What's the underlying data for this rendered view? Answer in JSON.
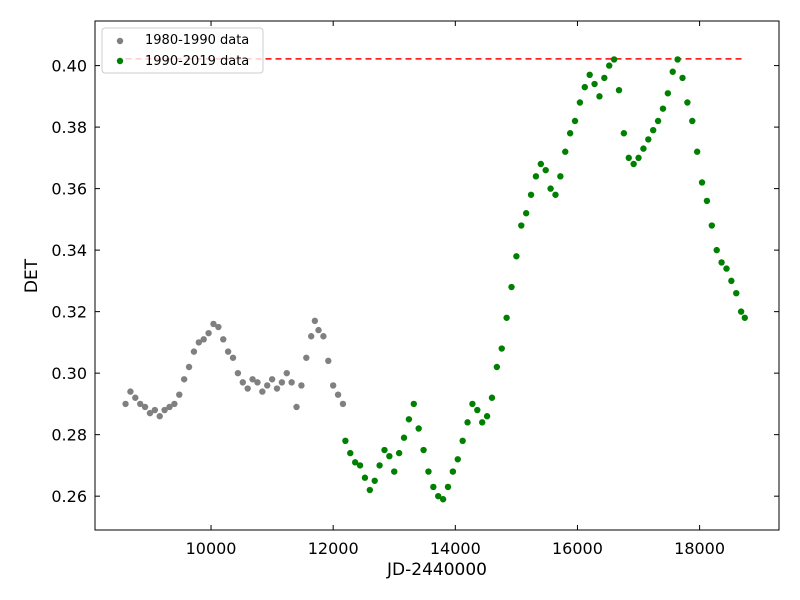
{
  "chart_data": {
    "type": "scatter",
    "xlabel": "JD-2440000",
    "ylabel": "DET",
    "xlim": [
      8100,
      19300
    ],
    "ylim": [
      0.249,
      0.4145
    ],
    "xticks": [
      10000,
      12000,
      14000,
      16000,
      18000
    ],
    "xtick_labels": [
      "10000",
      "12000",
      "14000",
      "16000",
      "18000"
    ],
    "yticks": [
      0.26,
      0.28,
      0.3,
      0.32,
      0.34,
      0.36,
      0.38,
      0.4
    ],
    "ytick_labels": [
      "0.26",
      "0.28",
      "0.30",
      "0.32",
      "0.34",
      "0.36",
      "0.38",
      "0.40"
    ],
    "legend_position": "top-left",
    "reference_line": {
      "y": 0.4022,
      "x_start": 8600,
      "x_end": 18750,
      "color": "#ff0000",
      "style": "dashed"
    },
    "series": [
      {
        "name": "1980-1990 data",
        "color": "#808080",
        "x": [
          8600,
          8680,
          8760,
          8840,
          8920,
          9000,
          9080,
          9160,
          9240,
          9320,
          9400,
          9480,
          9560,
          9640,
          9720,
          9800,
          9880,
          9960,
          10040,
          10120,
          10200,
          10280,
          10360,
          10440,
          10520,
          10600,
          10680,
          10760,
          10840,
          10920,
          11000,
          11080,
          11160,
          11240,
          11320,
          11400,
          11480,
          11560,
          11640,
          11700,
          11760,
          11840,
          11920,
          12000,
          12080,
          12160
        ],
        "y": [
          0.29,
          0.294,
          0.292,
          0.29,
          0.289,
          0.287,
          0.288,
          0.286,
          0.288,
          0.289,
          0.29,
          0.293,
          0.298,
          0.302,
          0.307,
          0.31,
          0.311,
          0.313,
          0.316,
          0.315,
          0.311,
          0.307,
          0.305,
          0.3,
          0.297,
          0.295,
          0.298,
          0.297,
          0.294,
          0.296,
          0.298,
          0.295,
          0.297,
          0.3,
          0.297,
          0.289,
          0.296,
          0.305,
          0.312,
          0.317,
          0.314,
          0.312,
          0.304,
          0.296,
          0.293,
          0.29
        ]
      },
      {
        "name": "1990-2019 data",
        "color": "#008000",
        "x": [
          12200,
          12280,
          12360,
          12440,
          12520,
          12600,
          12680,
          12760,
          12840,
          12920,
          13000,
          13080,
          13160,
          13240,
          13320,
          13400,
          13480,
          13560,
          13640,
          13720,
          13800,
          13880,
          13960,
          14040,
          14120,
          14200,
          14280,
          14360,
          14440,
          14520,
          14600,
          14680,
          14760,
          14840,
          14920,
          15000,
          15080,
          15160,
          15240,
          15320,
          15400,
          15480,
          15560,
          15640,
          15720,
          15800,
          15880,
          15960,
          16040,
          16120,
          16200,
          16280,
          16360,
          16440,
          16520,
          16600,
          16680,
          16760,
          16840,
          16920,
          17000,
          17080,
          17160,
          17240,
          17320,
          17400,
          17480,
          17560,
          17640,
          17720,
          17800,
          17880,
          17960,
          18040,
          18120,
          18200,
          18280,
          18360,
          18440,
          18520,
          18600,
          18680,
          18740
        ],
        "y": [
          0.278,
          0.274,
          0.271,
          0.27,
          0.266,
          0.262,
          0.265,
          0.27,
          0.275,
          0.273,
          0.268,
          0.274,
          0.279,
          0.285,
          0.29,
          0.282,
          0.275,
          0.268,
          0.263,
          0.26,
          0.259,
          0.263,
          0.268,
          0.272,
          0.278,
          0.284,
          0.29,
          0.288,
          0.284,
          0.286,
          0.292,
          0.302,
          0.308,
          0.318,
          0.328,
          0.338,
          0.348,
          0.352,
          0.358,
          0.364,
          0.368,
          0.366,
          0.36,
          0.358,
          0.364,
          0.372,
          0.378,
          0.382,
          0.388,
          0.393,
          0.397,
          0.394,
          0.39,
          0.396,
          0.4,
          0.402,
          0.392,
          0.378,
          0.37,
          0.368,
          0.37,
          0.373,
          0.376,
          0.379,
          0.382,
          0.386,
          0.391,
          0.398,
          0.402,
          0.396,
          0.388,
          0.382,
          0.372,
          0.362,
          0.356,
          0.348,
          0.34,
          0.336,
          0.334,
          0.33,
          0.326,
          0.32,
          0.318
        ]
      }
    ]
  }
}
